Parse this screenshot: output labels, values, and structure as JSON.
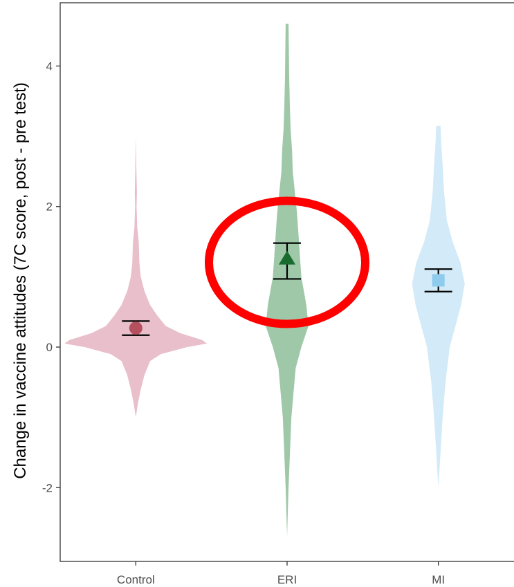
{
  "chart_data": {
    "type": "violin",
    "title": "",
    "xlabel": "",
    "ylabel": "Change in vaccine attitudes (7C score, post - pre test)",
    "ylim": [
      -3.05,
      4.9
    ],
    "yticks": [
      -2,
      0,
      2,
      4
    ],
    "ytick_labels": [
      "-2",
      "0",
      "2",
      "4"
    ],
    "grid": false,
    "categories": [
      "Control",
      "ERI",
      "MI"
    ],
    "series": [
      {
        "category": "Control",
        "color": "#e8bfca",
        "point_color": "#b5505f",
        "marker": "circle",
        "mean": 0.27,
        "ci": [
          0.17,
          0.37
        ],
        "range": [
          -1.0,
          3.0
        ],
        "density": [
          [
            -1.0,
            0.0
          ],
          [
            -0.8,
            0.03
          ],
          [
            -0.6,
            0.07
          ],
          [
            -0.4,
            0.12
          ],
          [
            -0.2,
            0.2
          ],
          [
            -0.1,
            0.35
          ],
          [
            0.0,
            0.72
          ],
          [
            0.05,
            1.0
          ],
          [
            0.1,
            0.93
          ],
          [
            0.2,
            0.62
          ],
          [
            0.3,
            0.42
          ],
          [
            0.45,
            0.3
          ],
          [
            0.6,
            0.2
          ],
          [
            0.8,
            0.12
          ],
          [
            1.0,
            0.07
          ],
          [
            1.2,
            0.05
          ],
          [
            1.5,
            0.04
          ],
          [
            1.7,
            0.02
          ],
          [
            2.0,
            0.01
          ],
          [
            2.2,
            0.015
          ],
          [
            2.5,
            0.008
          ],
          [
            3.0,
            0.0
          ]
        ]
      },
      {
        "category": "ERI",
        "color": "#9fc8a8",
        "point_color": "#1a6b2e",
        "marker": "triangle",
        "mean": 1.25,
        "ci": [
          0.97,
          1.48
        ],
        "range": [
          -2.7,
          4.6
        ],
        "density": [
          [
            -2.7,
            0.0
          ],
          [
            -2.0,
            0.02
          ],
          [
            -1.0,
            0.06
          ],
          [
            -0.3,
            0.12
          ],
          [
            0.0,
            0.2
          ],
          [
            0.3,
            0.3
          ],
          [
            0.6,
            0.27
          ],
          [
            1.0,
            0.2
          ],
          [
            1.3,
            0.18
          ],
          [
            1.6,
            0.16
          ],
          [
            1.9,
            0.14
          ],
          [
            2.2,
            0.11
          ],
          [
            2.5,
            0.08
          ],
          [
            2.8,
            0.07
          ],
          [
            3.1,
            0.05
          ],
          [
            3.4,
            0.04
          ],
          [
            3.8,
            0.03
          ],
          [
            4.2,
            0.025
          ],
          [
            4.6,
            0.02
          ]
        ]
      },
      {
        "category": "MI",
        "color": "#d3eaf8",
        "point_color": "#8ecbed",
        "marker": "square",
        "mean": 0.95,
        "ci": [
          0.79,
          1.11
        ],
        "range": [
          -2.0,
          3.15
        ],
        "density": [
          [
            -2.0,
            0.0
          ],
          [
            -1.5,
            0.03
          ],
          [
            -1.0,
            0.06
          ],
          [
            -0.5,
            0.1
          ],
          [
            0.0,
            0.16
          ],
          [
            0.3,
            0.24
          ],
          [
            0.6,
            0.32
          ],
          [
            0.9,
            0.37
          ],
          [
            1.2,
            0.31
          ],
          [
            1.5,
            0.2
          ],
          [
            1.8,
            0.12
          ],
          [
            2.2,
            0.08
          ],
          [
            2.6,
            0.06
          ],
          [
            2.9,
            0.04
          ],
          [
            3.15,
            0.03
          ]
        ]
      }
    ],
    "annotation": {
      "type": "ellipse",
      "color": "#ff0000",
      "target": "ERI"
    }
  }
}
